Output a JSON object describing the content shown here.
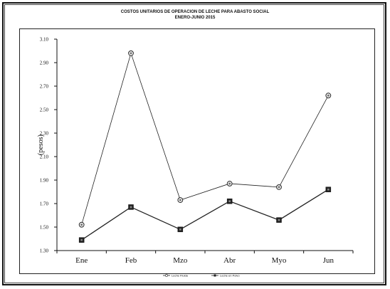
{
  "chart_data": {
    "type": "line",
    "title": "COSTOS UNITARIOS DE OPERACION DE LECHE PARA ABASTO SOCIAL",
    "subtitle": "ENERO-JUNIO 2015",
    "xlabel": "",
    "ylabel": "(pesos)",
    "categories": [
      "Ene",
      "Feb",
      "Mzo",
      "Abr",
      "Myo",
      "Jun"
    ],
    "ylim": [
      1.3,
      3.1
    ],
    "yticks": [
      "3.10",
      "2.90",
      "2.70",
      "2.50",
      "2.30",
      "2.10",
      "1.90",
      "1.70",
      "1.50",
      "1.30"
    ],
    "grid": false,
    "legend_position": "bottom",
    "series": [
      {
        "name": "Leche Fluida",
        "marker": "circle",
        "values": [
          1.52,
          2.98,
          1.73,
          1.87,
          1.84,
          2.62
        ]
      },
      {
        "name": "Leche en Polvo",
        "marker": "square",
        "values": [
          1.39,
          1.67,
          1.48,
          1.72,
          1.56,
          1.82
        ]
      }
    ]
  }
}
